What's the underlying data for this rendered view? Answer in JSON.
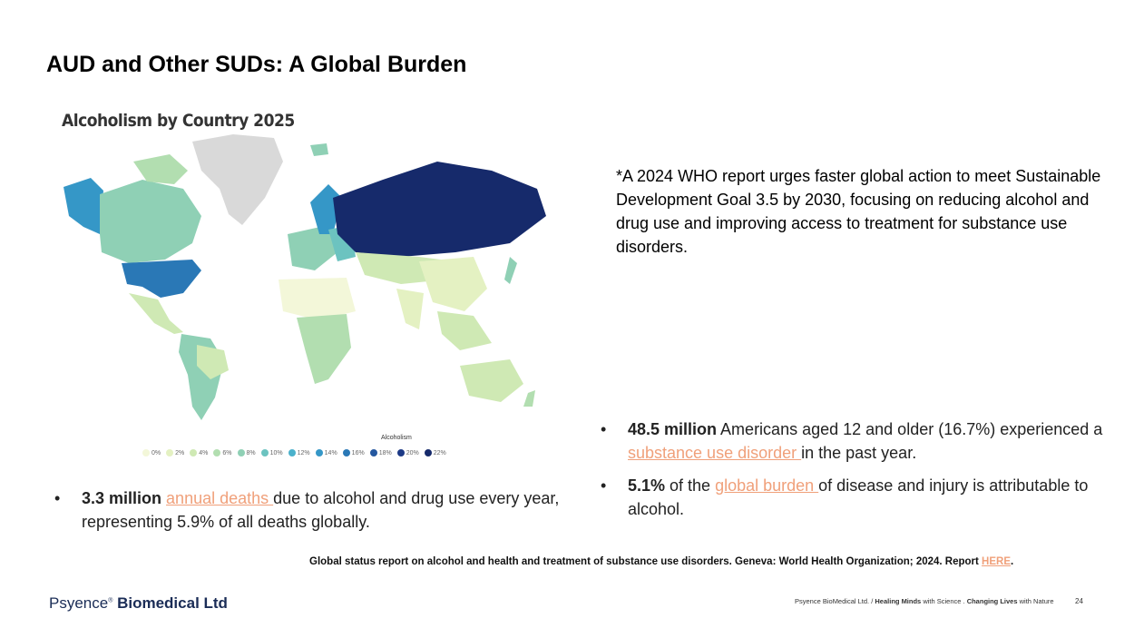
{
  "slide": {
    "title": "AUD and Other SUDs: A Global Burden",
    "map_title": "Alcoholism by Country 2025",
    "legend_title": "Alcoholism",
    "legend": [
      {
        "label": "0%",
        "color": "#f3f7d9"
      },
      {
        "label": "2%",
        "color": "#e4f1c2"
      },
      {
        "label": "4%",
        "color": "#cfe9b4"
      },
      {
        "label": "6%",
        "color": "#b2deb0"
      },
      {
        "label": "8%",
        "color": "#8fd0b5"
      },
      {
        "label": "10%",
        "color": "#6cc3c0"
      },
      {
        "label": "12%",
        "color": "#4bb1cb"
      },
      {
        "label": "14%",
        "color": "#3597c7"
      },
      {
        "label": "16%",
        "color": "#2a78b6"
      },
      {
        "label": "18%",
        "color": "#24579f"
      },
      {
        "label": "20%",
        "color": "#1d3a86"
      },
      {
        "label": "22%",
        "color": "#162a6b"
      }
    ],
    "note": "*A 2024 WHO report urges faster global action to meet Sustainable Development Goal 3.5 by 2030, focusing on reducing alcohol and drug use and improving access to treatment for substance use disorders.",
    "bullets_right": [
      {
        "bold": "48.5 million",
        "pre": " Americans aged 12 and older (16.7%) experienced a ",
        "link": "substance use disorder ",
        "post": "in the past year."
      },
      {
        "bold": "5.1%",
        "pre": " of the ",
        "link": "global burden ",
        "post": "of disease and injury is attributable to alcohol."
      }
    ],
    "bullets_left": [
      {
        "bold": "3.3 million",
        "pre": " ",
        "link": "annual deaths ",
        "post": "due to alcohol and drug use every year, representing 5.9% of all deaths globally."
      }
    ],
    "citation_text": "Global status report on alcohol and health and treatment of substance use disorders. Geneva: World Health Organization; 2024. Report ",
    "citation_link": "HERE",
    "citation_end": ".",
    "bullet_char": "•"
  },
  "footer": {
    "logo_light": "Psyence",
    "logo_sup": "®",
    "logo_bold": " Biomedical Ltd",
    "tagline_1": "Psyence BioMedical Ltd. / ",
    "tagline_2": "Healing Minds",
    "tagline_3": " with Science . ",
    "tagline_4": "Changing Lives",
    "tagline_5": " with Nature",
    "page_number": "24"
  }
}
